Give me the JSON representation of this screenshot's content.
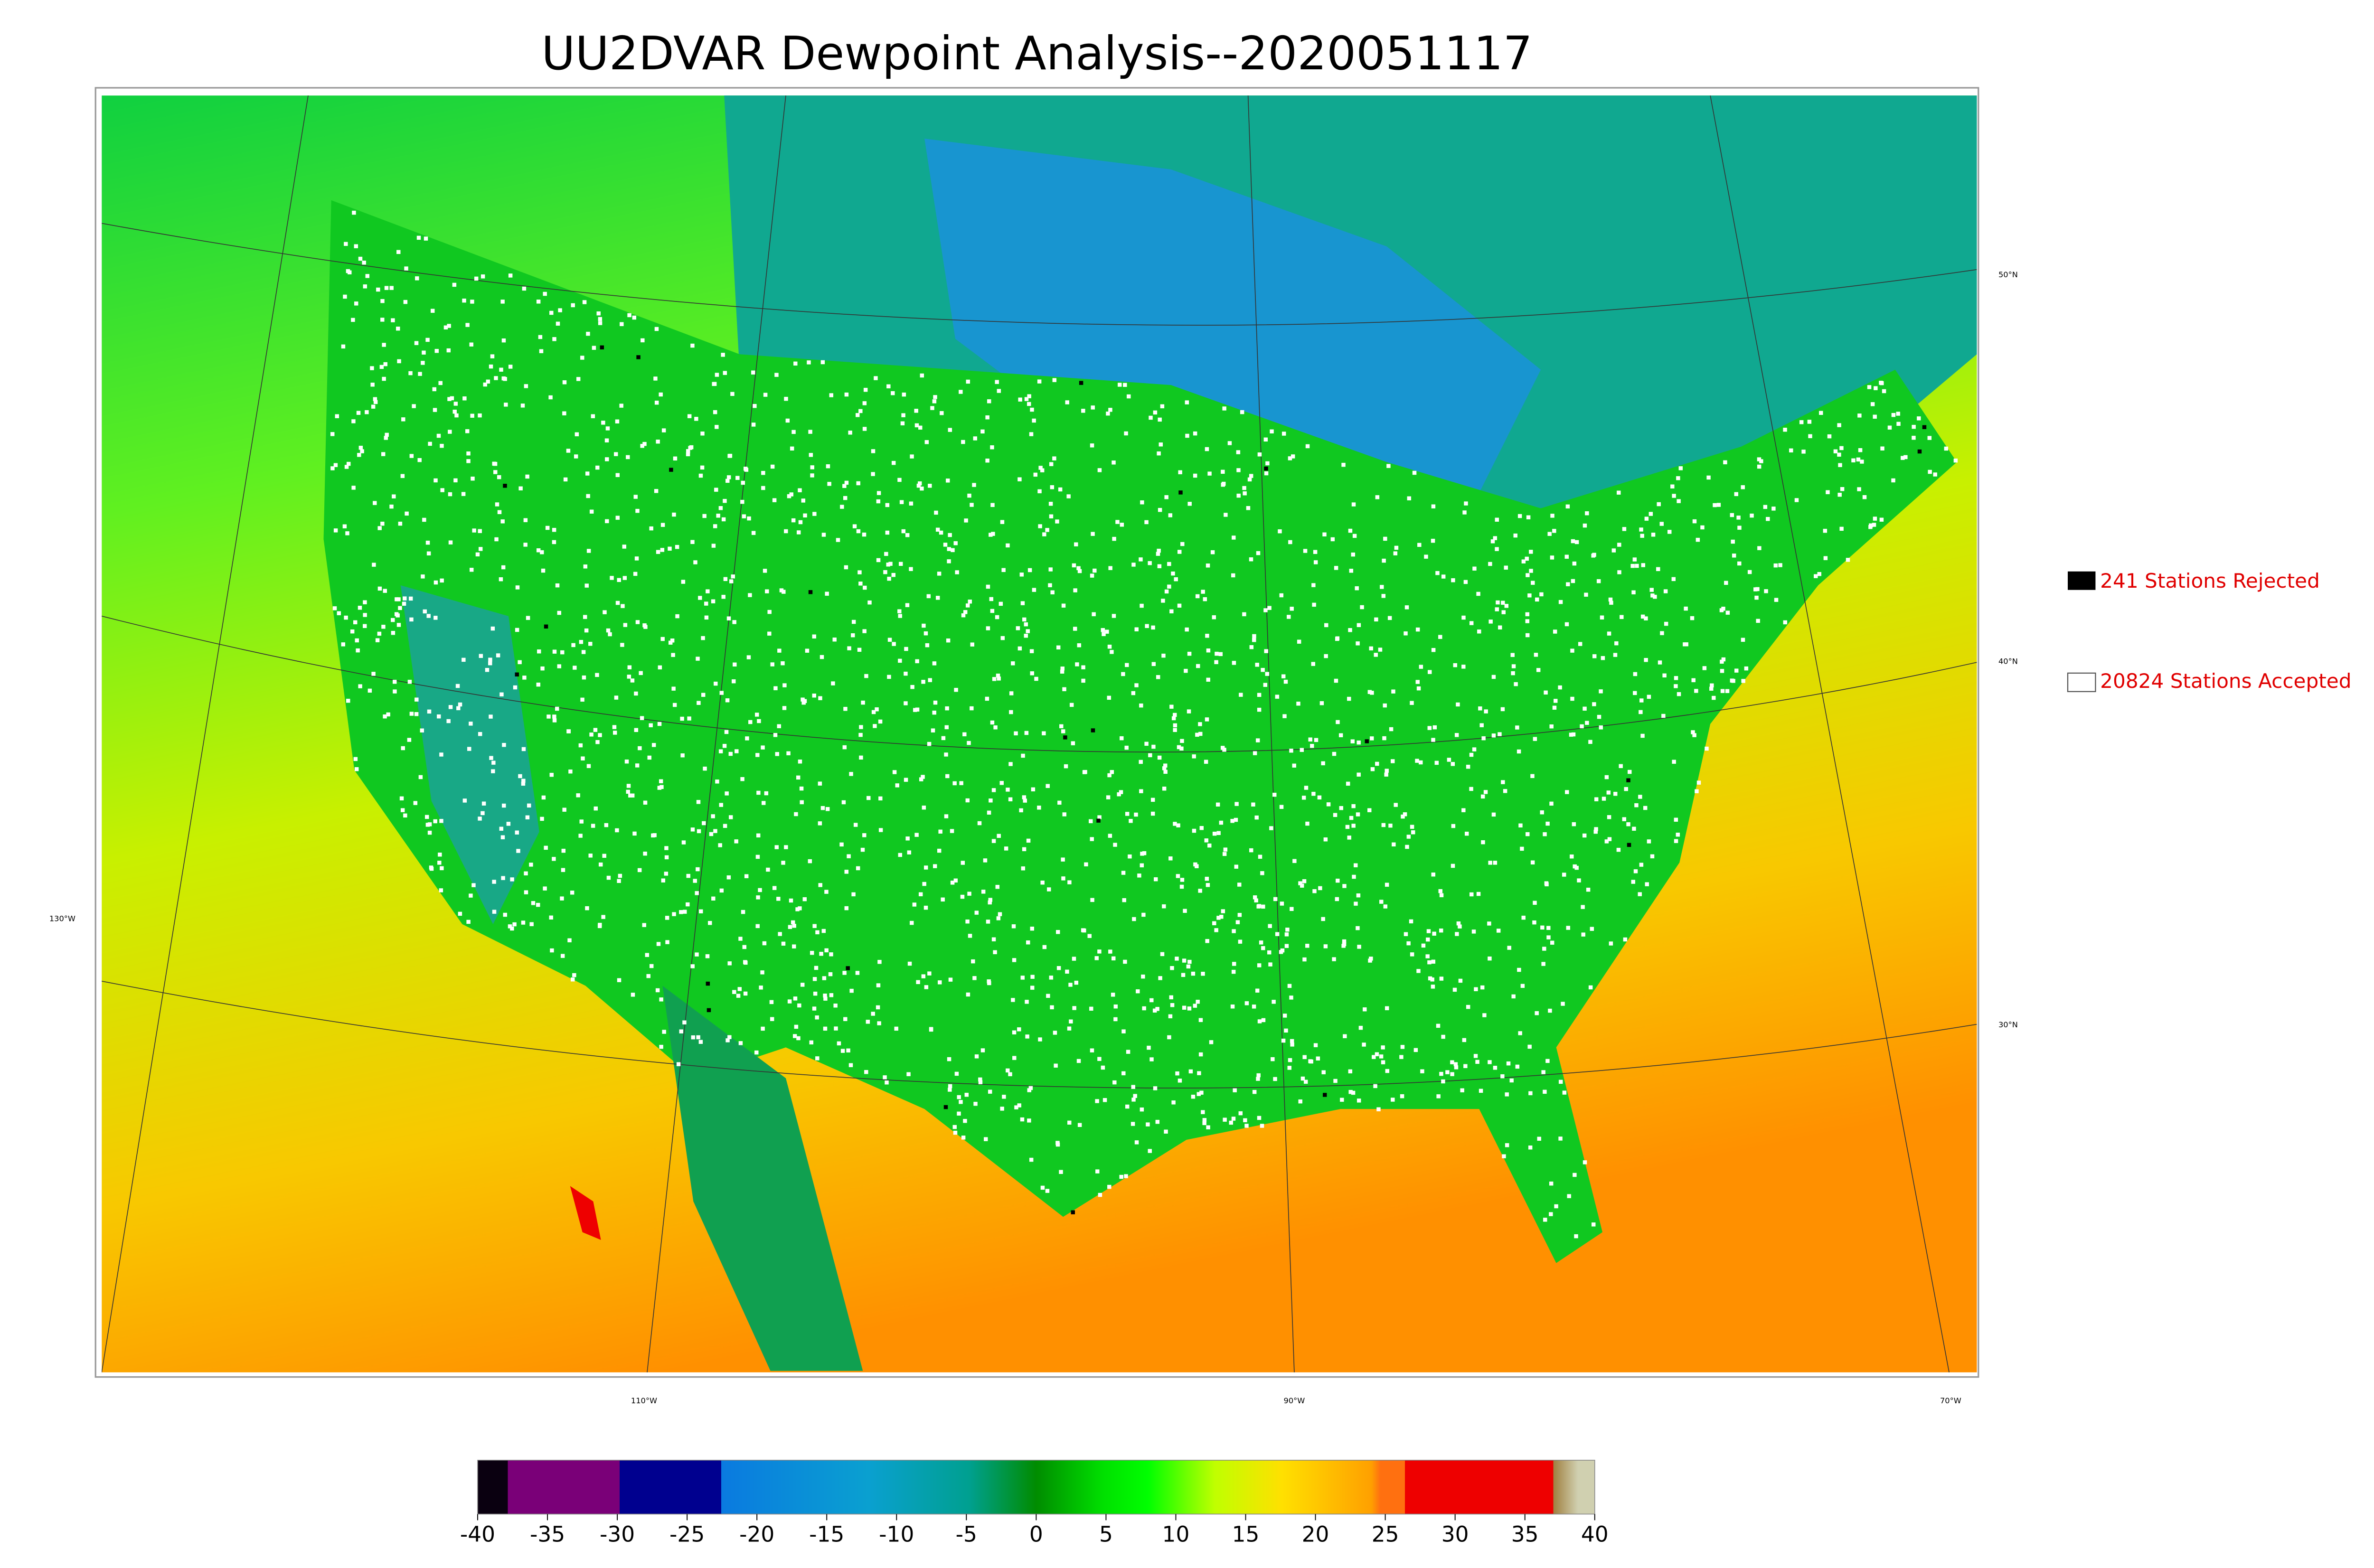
{
  "title": "UU2DVAR Dewpoint Analysis--2020051117",
  "legend": [
    {
      "label": "241 Stations Rejected"
    },
    {
      "label": "20824 Stations Accepted"
    }
  ],
  "latitude_labels": [
    "50°N",
    "40°N",
    "30°N"
  ],
  "longitude_labels": [
    "130°W",
    "110°W",
    "90°W",
    "70°W"
  ],
  "colorbar": {
    "range": [
      -40,
      40
    ],
    "ticks": [
      -40,
      -35,
      -30,
      -25,
      -20,
      -15,
      -10,
      -5,
      0,
      5,
      10,
      15,
      20,
      25,
      30,
      35,
      40
    ]
  }
}
